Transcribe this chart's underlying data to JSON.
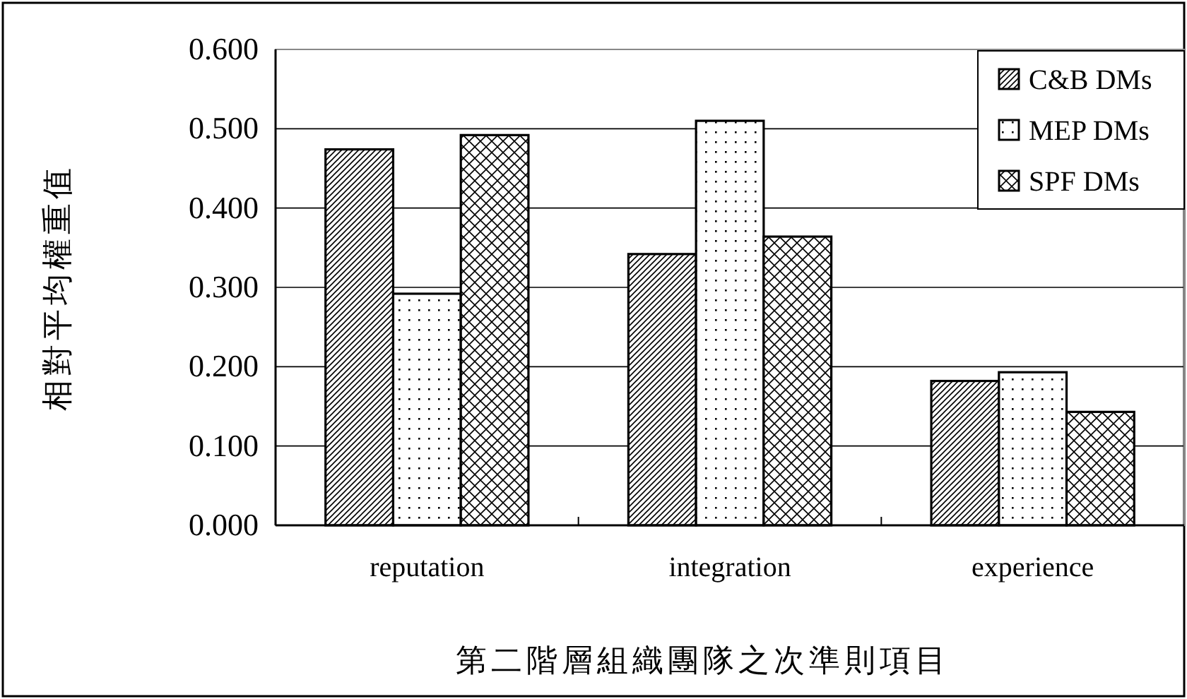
{
  "chart_data": {
    "type": "bar",
    "xlabel": "第二階層組織團隊之次準則項目",
    "ylabel": "相對平均權重值",
    "categories": [
      "reputation",
      "integration",
      "experience"
    ],
    "series": [
      {
        "name": "C&B DMs",
        "color": "#000000",
        "values": [
          0.474,
          0.342,
          0.182
        ]
      },
      {
        "name": "MEP DMs",
        "color": "#000000",
        "values": [
          0.292,
          0.51,
          0.193
        ]
      },
      {
        "name": "SPF DMs",
        "color": "#000000",
        "values": [
          0.492,
          0.364,
          0.143
        ]
      }
    ],
    "ylim": [
      0,
      0.6
    ],
    "yticks": [
      {
        "value": 0,
        "label": "0.000"
      },
      {
        "value": 0.1,
        "label": "0.100"
      },
      {
        "value": 0.2,
        "label": "0.200"
      },
      {
        "value": 0.3,
        "label": "0.300"
      },
      {
        "value": 0.4,
        "label": "0.400"
      },
      {
        "value": 0.5,
        "label": "0.500"
      },
      {
        "value": 0.6,
        "label": "0.600"
      }
    ],
    "grid": "y",
    "legend": "top right"
  }
}
